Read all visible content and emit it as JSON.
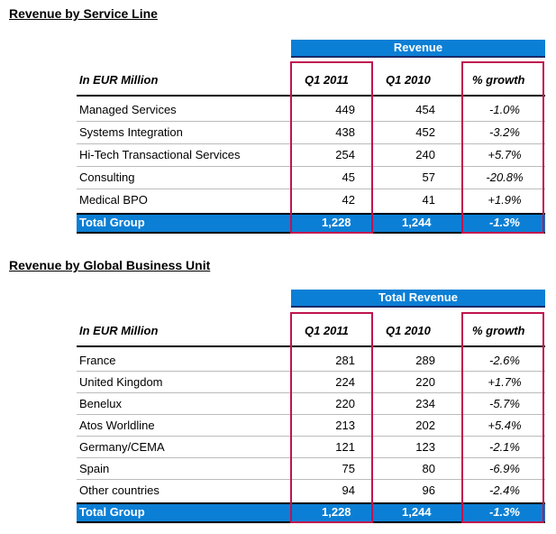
{
  "table1": {
    "title": "Revenue by Service Line",
    "group_header": "Revenue",
    "col_label": "In EUR Million",
    "col_q1_2011": "Q1 2011",
    "col_q1_2010": "Q1 2010",
    "col_growth": "% growth",
    "rows": [
      {
        "label": "Managed Services",
        "q2011": "449",
        "q2010": "454",
        "growth": "-1.0%"
      },
      {
        "label": "Systems Integration",
        "q2011": "438",
        "q2010": "452",
        "growth": "-3.2%"
      },
      {
        "label": "Hi-Tech Transactional Services",
        "q2011": "254",
        "q2010": "240",
        "growth": "+5.7%"
      },
      {
        "label": "Consulting",
        "q2011": "45",
        "q2010": "57",
        "growth": "-20.8%"
      },
      {
        "label": "Medical BPO",
        "q2011": "42",
        "q2010": "41",
        "growth": "+1.9%"
      }
    ],
    "total": {
      "label": "Total Group",
      "q2011": "1,228",
      "q2010": "1,244",
      "growth": "-1.3%"
    }
  },
  "table2": {
    "title": "Revenue by Global Business Unit",
    "group_header": "Total Revenue",
    "col_label": "In EUR Million",
    "col_q1_2011": "Q1 2011",
    "col_q1_2010": "Q1 2010",
    "col_growth": "% growth",
    "rows": [
      {
        "label": "France",
        "q2011": "281",
        "q2010": "289",
        "growth": "-2.6%"
      },
      {
        "label": "United Kingdom",
        "q2011": "224",
        "q2010": "220",
        "growth": "+1.7%"
      },
      {
        "label": "Benelux",
        "q2011": "220",
        "q2010": "234",
        "growth": "-5.7%"
      },
      {
        "label": "Atos Worldline",
        "q2011": "213",
        "q2010": "202",
        "growth": "+5.4%"
      },
      {
        "label": "Germany/CEMA",
        "q2011": "121",
        "q2010": "123",
        "growth": "-2.1%"
      },
      {
        "label": "Spain",
        "q2011": "75",
        "q2010": "80",
        "growth": "-6.9%"
      },
      {
        "label": "Other countries",
        "q2011": "94",
        "q2010": "96",
        "growth": "-2.4%"
      }
    ],
    "total": {
      "label": "Total Group",
      "q2011": "1,228",
      "q2010": "1,244",
      "growth": "-1.3%"
    }
  },
  "colors": {
    "header_blue": "#0b7fd5",
    "highlight_red": "#c0134f"
  }
}
